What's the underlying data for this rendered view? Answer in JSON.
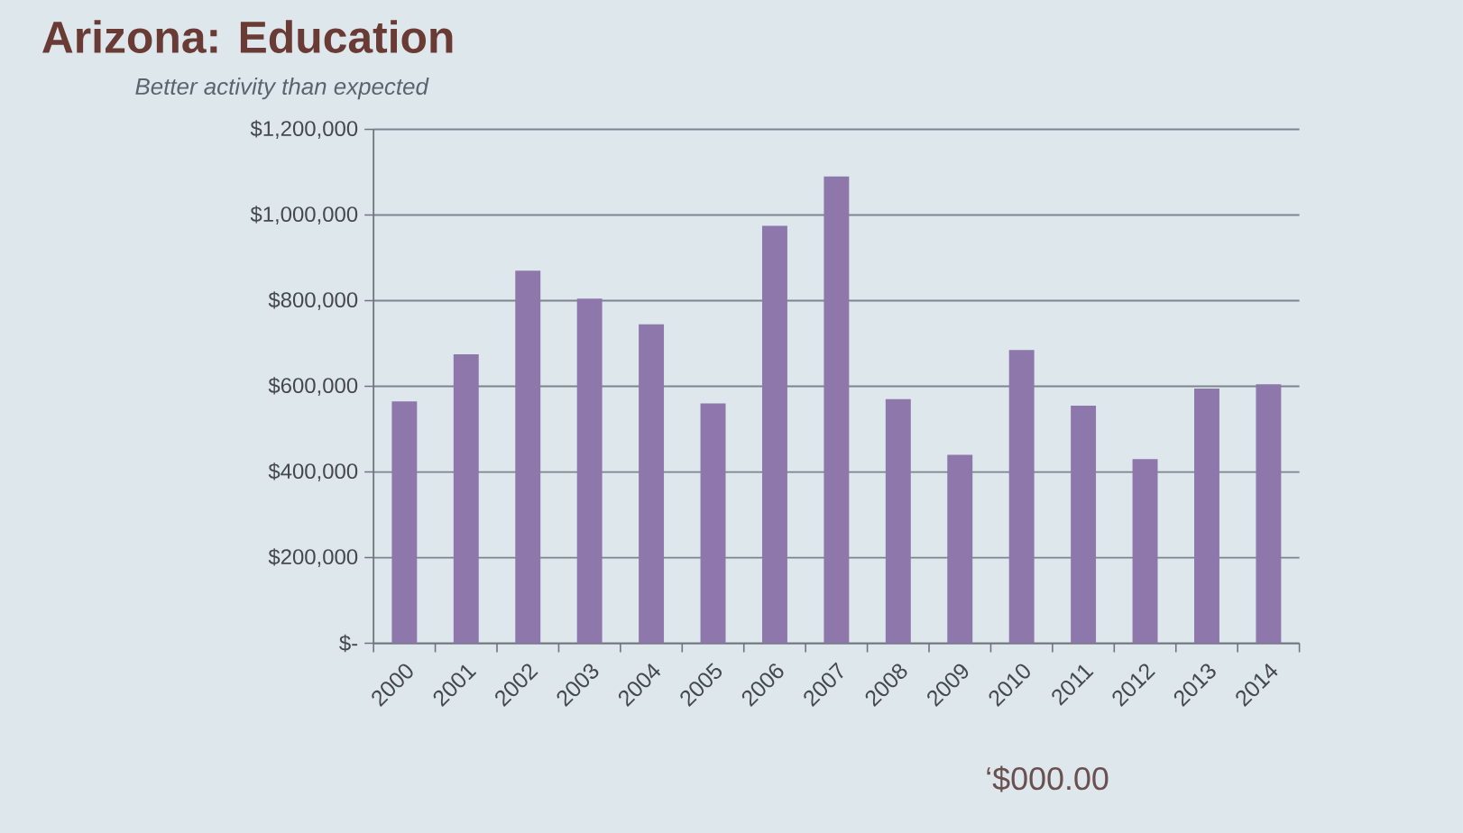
{
  "chart_data": {
    "type": "bar",
    "title": "Arizona: Education",
    "subtitle": "Better activity than expected",
    "categories": [
      "2000",
      "2001",
      "2002",
      "2003",
      "2004",
      "2005",
      "2006",
      "2007",
      "2008",
      "2009",
      "2010",
      "2011",
      "2012",
      "2013",
      "2014"
    ],
    "values": [
      565000,
      675000,
      870000,
      805000,
      745000,
      560000,
      975000,
      1090000,
      570000,
      440000,
      685000,
      555000,
      430000,
      595000,
      605000
    ],
    "color": "#8e77aa",
    "ylim": [
      0,
      1200000
    ],
    "yticks": [
      {
        "value": 0,
        "label": "$-"
      },
      {
        "value": 200000,
        "label": "$200,000"
      },
      {
        "value": 400000,
        "label": "$400,000"
      },
      {
        "value": 600000,
        "label": "$600,000"
      },
      {
        "value": 800000,
        "label": "$800,000"
      },
      {
        "value": 1000000,
        "label": "$1,000,000"
      },
      {
        "value": 1200000,
        "label": "$1,200,000"
      }
    ],
    "grid": "y",
    "annotations": [
      "‘$000.00"
    ]
  }
}
